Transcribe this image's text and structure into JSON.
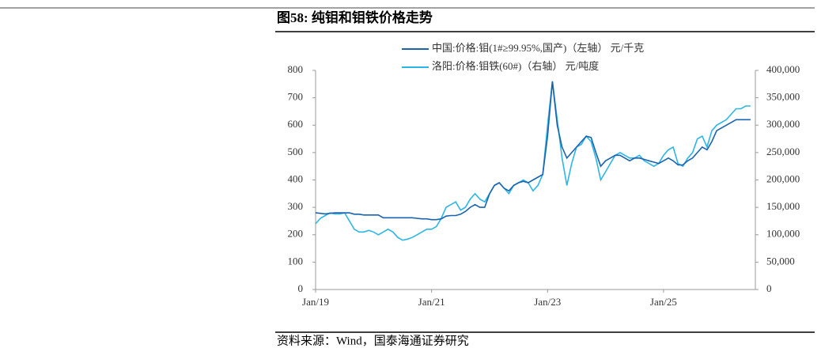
{
  "chart_data": {
    "type": "line",
    "title": "图58:  纯钼和钼铁价格走势",
    "source": "资料来源：Wind，国泰海通证券研究",
    "x": [
      "2019-01",
      "2019-02",
      "2019-03",
      "2019-04",
      "2019-05",
      "2019-06",
      "2019-07",
      "2019-08",
      "2019-09",
      "2019-10",
      "2019-11",
      "2019-12",
      "2020-01",
      "2020-02",
      "2020-03",
      "2020-04",
      "2020-05",
      "2020-06",
      "2020-07",
      "2020-08",
      "2020-09",
      "2020-10",
      "2020-11",
      "2020-12",
      "2021-01",
      "2021-02",
      "2021-03",
      "2021-04",
      "2021-05",
      "2021-06",
      "2021-07",
      "2021-08",
      "2021-09",
      "2021-10",
      "2021-11",
      "2021-12",
      "2022-01",
      "2022-02",
      "2022-03",
      "2022-04",
      "2022-05",
      "2022-06",
      "2022-07",
      "2022-08",
      "2022-09",
      "2022-10",
      "2022-11",
      "2022-12",
      "2023-01",
      "2023-02",
      "2023-03",
      "2023-04",
      "2023-05",
      "2023-06",
      "2023-07",
      "2023-08",
      "2023-09",
      "2023-10",
      "2023-11",
      "2023-12",
      "2024-01",
      "2024-02",
      "2024-03",
      "2024-04",
      "2024-05",
      "2024-06",
      "2024-07",
      "2024-08",
      "2024-09",
      "2024-10",
      "2024-11",
      "2024-12",
      "2025-01",
      "2025-02",
      "2025-03",
      "2025-04",
      "2025-05",
      "2025-06",
      "2025-07",
      "2025-08",
      "2025-09",
      "2025-10",
      "2025-11",
      "2025-12",
      "2026-01",
      "2026-02",
      "2026-03",
      "2026-04",
      "2026-05",
      "2026-06",
      "2026-07"
    ],
    "series": [
      {
        "name": "中国:价格:钼(1#≥99.95%,国产)（左轴）   元/千克",
        "color": "#1a63ad",
        "axis": "y",
        "values": [
          280,
          278,
          276,
          278,
          280,
          280,
          280,
          280,
          275,
          275,
          272,
          272,
          272,
          272,
          262,
          262,
          262,
          262,
          262,
          262,
          262,
          260,
          258,
          258,
          255,
          255,
          258,
          268,
          270,
          270,
          275,
          285,
          300,
          310,
          300,
          300,
          350,
          380,
          390,
          370,
          360,
          380,
          390,
          395,
          390,
          400,
          410,
          420,
          560,
          760,
          600,
          520,
          480,
          500,
          520,
          540,
          560,
          555,
          500,
          450,
          470,
          480,
          490,
          490,
          480,
          470,
          480,
          480,
          475,
          470,
          465,
          460,
          470,
          480,
          470,
          455,
          455,
          470,
          480,
          500,
          520,
          510,
          540,
          580,
          590,
          600,
          610,
          620,
          620,
          620,
          620
        ]
      },
      {
        "name": "洛阳:价格:钼铁(60#)（右轴）  元/吨度",
        "color": "#2db5e6",
        "axis": "y2",
        "values": [
          120000,
          130000,
          135000,
          140000,
          138000,
          138000,
          140000,
          125000,
          110000,
          105000,
          105000,
          108000,
          105000,
          100000,
          105000,
          110000,
          105000,
          95000,
          90000,
          92000,
          95000,
          100000,
          105000,
          110000,
          110000,
          115000,
          130000,
          150000,
          155000,
          160000,
          145000,
          150000,
          165000,
          175000,
          165000,
          160000,
          175000,
          190000,
          195000,
          185000,
          175000,
          190000,
          195000,
          200000,
          195000,
          180000,
          190000,
          210000,
          300000,
          380000,
          310000,
          240000,
          190000,
          230000,
          260000,
          265000,
          280000,
          270000,
          240000,
          200000,
          215000,
          230000,
          245000,
          250000,
          245000,
          240000,
          240000,
          245000,
          235000,
          230000,
          225000,
          230000,
          245000,
          255000,
          260000,
          230000,
          225000,
          240000,
          250000,
          275000,
          280000,
          260000,
          290000,
          300000,
          305000,
          310000,
          320000,
          330000,
          330000,
          335000,
          335000
        ]
      }
    ],
    "xlim": [
      "2019-01",
      "2026-08"
    ],
    "xticks": [
      {
        "value": "2019-01",
        "label": "Jan/19"
      },
      {
        "value": "2021-01",
        "label": "Jan/21"
      },
      {
        "value": "2023-01",
        "label": "Jan/23"
      },
      {
        "value": "2025-01",
        "label": "Jan/25"
      }
    ],
    "ylim": [
      0,
      800
    ],
    "yticks": [
      0,
      100,
      200,
      300,
      400,
      500,
      600,
      700,
      800
    ],
    "y2lim": [
      0,
      400000
    ],
    "y2ticks": [
      0,
      {
        "value": 50000,
        "label": "50,000"
      },
      {
        "value": 100000,
        "label": "100,000"
      },
      {
        "value": 150000,
        "label": "150,000"
      },
      {
        "value": 200000,
        "label": "200,000"
      },
      {
        "value": 250000,
        "label": "250,000"
      },
      {
        "value": 300000,
        "label": "300,000"
      },
      {
        "value": 350000,
        "label": "350,000"
      },
      {
        "value": 400000,
        "label": "400,000"
      }
    ],
    "grid": false
  }
}
